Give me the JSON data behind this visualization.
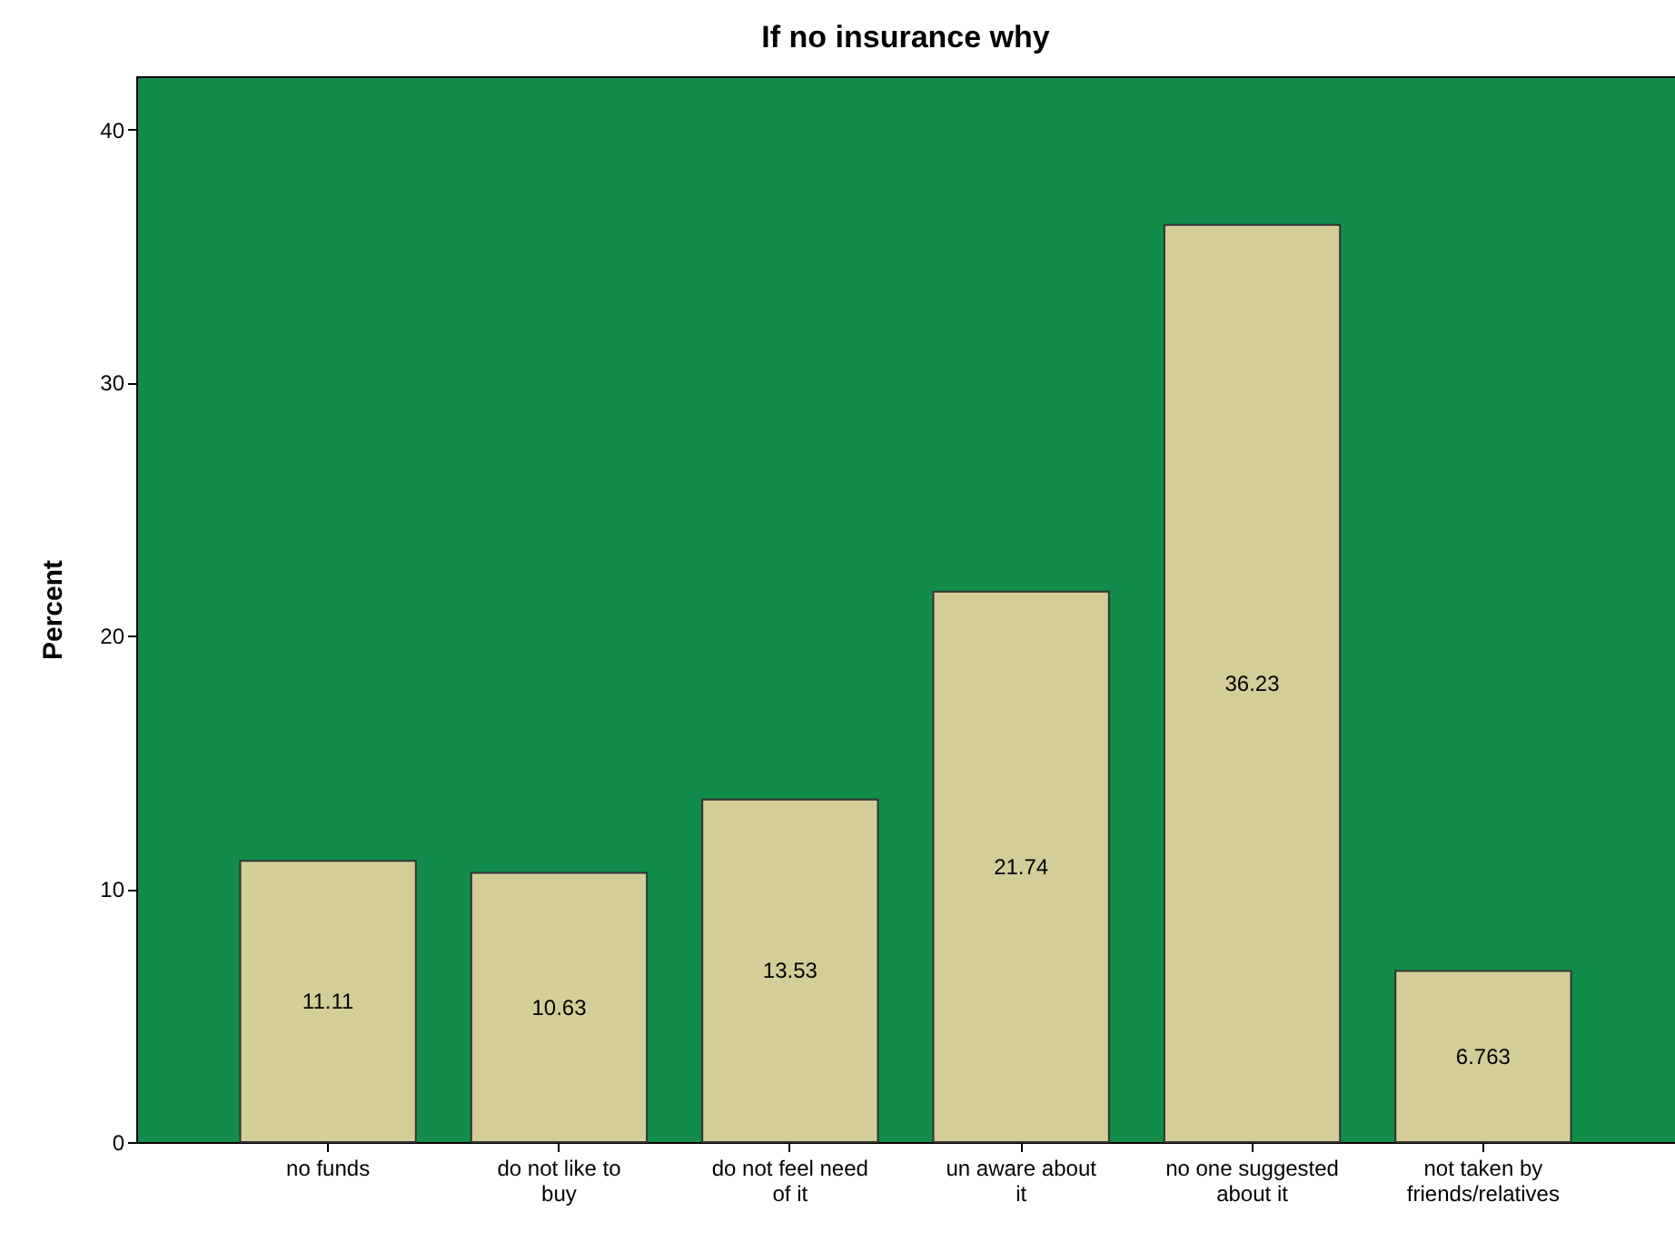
{
  "chart_data": {
    "type": "bar",
    "title": "If no insurance why",
    "ylabel": "Percent",
    "categories": [
      "no funds",
      "do not like to buy",
      "do not feel need of it",
      "un aware about it",
      "no one suggested about it",
      "not taken by friends/relatives"
    ],
    "values": [
      11.11,
      10.63,
      13.53,
      21.74,
      36.23,
      6.763
    ],
    "color": "#d3ce97",
    "ylim": [
      0,
      42.1
    ],
    "yticks": [
      0,
      10,
      20,
      30,
      40
    ],
    "data_labels": true,
    "grid": false
  }
}
